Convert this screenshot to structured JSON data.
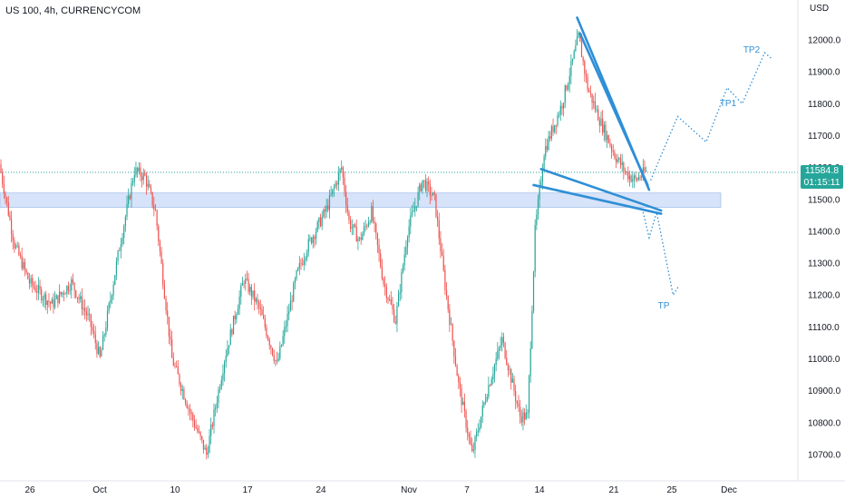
{
  "header": {
    "symbol_line": "US 100, 4h, CURRENCYCOM"
  },
  "axis": {
    "currency": "USD",
    "y_ticks": [
      "12000.0",
      "11900.0",
      "11800.0",
      "11700.0",
      "11600.0",
      "11500.0",
      "11400.0",
      "11300.0",
      "11200.0",
      "11100.0",
      "11000.0",
      "10900.0",
      "10800.0",
      "10700.0"
    ],
    "x_ticks": [
      "26",
      "Oct",
      "10",
      "17",
      "24",
      "Nov",
      "7",
      "14",
      "21",
      "25",
      "Dec"
    ]
  },
  "badge": {
    "price": "11584.8",
    "countdown": "01:15:11"
  },
  "annotations": {
    "tp": "TP",
    "tp1": "TP1",
    "tp2": "TP2"
  },
  "colors": {
    "up": "#26a69a",
    "down": "#ef5350",
    "zone": "#c9daf5",
    "line": "#2f8fd6",
    "dotted": "#26a69a"
  },
  "chart_data": {
    "type": "candlestick",
    "current_price": 11584.8,
    "ylim": [
      10640,
      12110
    ],
    "y_scale": "linear",
    "grid": false,
    "support_zone": [
      11475,
      11520
    ],
    "anchors": [
      {
        "i": 0,
        "p": 11610
      },
      {
        "i": 10,
        "p": 11360
      },
      {
        "i": 20,
        "p": 11240
      },
      {
        "i": 35,
        "p": 11170
      },
      {
        "i": 48,
        "p": 11240
      },
      {
        "i": 60,
        "p": 11120
      },
      {
        "i": 67,
        "p": 11000
      },
      {
        "i": 80,
        "p": 11350
      },
      {
        "i": 90,
        "p": 11590
      },
      {
        "i": 97,
        "p": 11570
      },
      {
        "i": 104,
        "p": 11460
      },
      {
        "i": 115,
        "p": 11000
      },
      {
        "i": 128,
        "p": 10820
      },
      {
        "i": 138,
        "p": 10700
      },
      {
        "i": 150,
        "p": 11000
      },
      {
        "i": 163,
        "p": 11250
      },
      {
        "i": 173,
        "p": 11160
      },
      {
        "i": 185,
        "p": 10980
      },
      {
        "i": 198,
        "p": 11260
      },
      {
        "i": 205,
        "p": 11350
      },
      {
        "i": 218,
        "p": 11470
      },
      {
        "i": 228,
        "p": 11600
      },
      {
        "i": 233,
        "p": 11430
      },
      {
        "i": 240,
        "p": 11370
      },
      {
        "i": 248,
        "p": 11460
      },
      {
        "i": 256,
        "p": 11240
      },
      {
        "i": 264,
        "p": 11120
      },
      {
        "i": 272,
        "p": 11400
      },
      {
        "i": 282,
        "p": 11560
      },
      {
        "i": 290,
        "p": 11500
      },
      {
        "i": 297,
        "p": 11230
      },
      {
        "i": 306,
        "p": 10920
      },
      {
        "i": 315,
        "p": 10700
      },
      {
        "i": 325,
        "p": 10900
      },
      {
        "i": 335,
        "p": 11060
      },
      {
        "i": 347,
        "p": 10820
      },
      {
        "i": 352,
        "p": 10820
      },
      {
        "i": 357,
        "p": 11400
      },
      {
        "i": 363,
        "p": 11650
      },
      {
        "i": 375,
        "p": 11800
      },
      {
        "i": 386,
        "p": 12010
      },
      {
        "i": 392,
        "p": 11850
      },
      {
        "i": 400,
        "p": 11750
      },
      {
        "i": 410,
        "p": 11640
      },
      {
        "i": 418,
        "p": 11580
      },
      {
        "i": 424,
        "p": 11560
      },
      {
        "i": 430,
        "p": 11585
      }
    ],
    "trendlines": [
      {
        "name": "wedge-upper",
        "from": {
          "x": 384,
          "y": 12070
        },
        "to": {
          "x": 432,
          "y": 11530
        }
      },
      {
        "name": "wedge-upper-2",
        "from": {
          "x": 386,
          "y": 12020
        },
        "to": {
          "x": 431,
          "y": 11545
        }
      },
      {
        "name": "wedge-lower",
        "from": {
          "x": 360,
          "y": 11595
        },
        "to": {
          "x": 440,
          "y": 11465
        }
      },
      {
        "name": "wedge-lower-2",
        "from": {
          "x": 355,
          "y": 11545
        },
        "to": {
          "x": 440,
          "y": 11455
        }
      }
    ],
    "projections": [
      {
        "name": "path-tp",
        "points": [
          {
            "x": 428,
            "y": 11460
          },
          {
            "x": 432,
            "y": 11380
          },
          {
            "x": 437,
            "y": 11460
          },
          {
            "x": 448,
            "y": 11200
          },
          {
            "x": 452,
            "y": 11230
          }
        ]
      },
      {
        "name": "path-tp2",
        "points": [
          {
            "x": 433,
            "y": 11560
          },
          {
            "x": 451,
            "y": 11760
          },
          {
            "x": 470,
            "y": 11680
          },
          {
            "x": 484,
            "y": 11850
          },
          {
            "x": 494,
            "y": 11800
          },
          {
            "x": 509,
            "y": 11960
          },
          {
            "x": 514,
            "y": 11940
          }
        ]
      }
    ]
  }
}
